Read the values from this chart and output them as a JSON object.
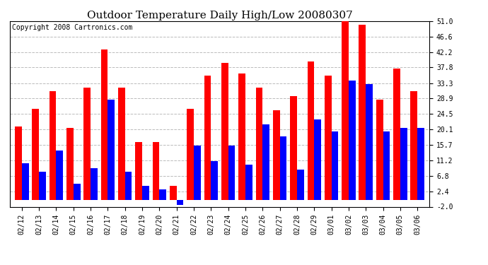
{
  "title": "Outdoor Temperature Daily High/Low 20080307",
  "copyright": "Copyright 2008 Cartronics.com",
  "dates": [
    "02/12",
    "02/13",
    "02/14",
    "02/15",
    "02/16",
    "02/17",
    "02/18",
    "02/19",
    "02/20",
    "02/21",
    "02/22",
    "02/23",
    "02/24",
    "02/25",
    "02/26",
    "02/27",
    "02/28",
    "02/29",
    "03/01",
    "03/02",
    "03/03",
    "03/04",
    "03/05",
    "03/06"
  ],
  "highs": [
    21.0,
    26.0,
    31.0,
    20.5,
    32.0,
    43.0,
    32.0,
    16.5,
    16.5,
    4.0,
    26.0,
    35.5,
    39.0,
    36.0,
    32.0,
    25.5,
    29.5,
    39.5,
    35.5,
    51.0,
    50.0,
    28.5,
    37.5,
    31.0
  ],
  "lows": [
    10.5,
    8.0,
    14.0,
    4.5,
    9.0,
    28.5,
    8.0,
    4.0,
    3.0,
    -1.5,
    15.5,
    11.0,
    15.5,
    10.0,
    21.5,
    18.0,
    8.5,
    23.0,
    19.5,
    34.0,
    33.0,
    19.5,
    20.5,
    20.5
  ],
  "high_color": "#ff0000",
  "low_color": "#0000ff",
  "bg_color": "#ffffff",
  "plot_bg_color": "#ffffff",
  "grid_color": "#bbbbbb",
  "ytick_labels": [
    "-2.0",
    "2.4",
    "6.8",
    "11.2",
    "15.7",
    "20.1",
    "24.5",
    "28.9",
    "33.3",
    "37.8",
    "42.2",
    "46.6",
    "51.0"
  ],
  "ytick_vals": [
    -2.0,
    2.4,
    6.8,
    11.2,
    15.7,
    20.1,
    24.5,
    28.9,
    33.3,
    37.8,
    42.2,
    46.6,
    51.0
  ],
  "ylim": [
    -2.0,
    51.0
  ],
  "title_fontsize": 11,
  "copyright_fontsize": 7,
  "tick_fontsize": 7
}
